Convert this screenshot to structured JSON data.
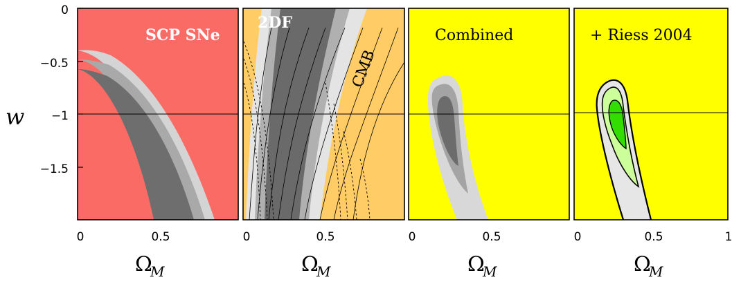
{
  "chart_data": [
    {
      "type": "contour",
      "label": "SCP SNe",
      "background": "#FA6B66",
      "xlim": [
        0,
        1
      ],
      "ylim": [
        -2,
        0
      ],
      "reference_line": {
        "w": -1
      },
      "contours": [
        {
          "level": "outer",
          "color": "#D4D4D4"
        },
        {
          "level": "middle",
          "color": "#A9A9A9"
        },
        {
          "level": "inner",
          "color": "#6E6E6E"
        }
      ]
    },
    {
      "type": "contour",
      "labels": [
        "2DF",
        "CMB"
      ],
      "background": "#FFCC66",
      "xlim": [
        0,
        1
      ],
      "ylim": [
        -2,
        0
      ],
      "reference_line": {
        "w": -1
      },
      "contours": [
        {
          "level": "outer",
          "color": "#E4E4E4"
        },
        {
          "level": "middle",
          "color": "#B0B0B0"
        },
        {
          "level": "inner",
          "color": "#6A6A6A"
        }
      ]
    },
    {
      "type": "contour",
      "label": "Combined",
      "background": "#FFFF00",
      "xlim": [
        0,
        1
      ],
      "ylim": [
        -2,
        0
      ],
      "reference_line": {
        "w": -1
      },
      "best_fit": {
        "omega_m": 0.27,
        "w": -1.2
      },
      "contours": [
        {
          "level": "outer",
          "color": "#D8D8D8"
        },
        {
          "level": "middle",
          "color": "#A4A4A4"
        },
        {
          "level": "inner",
          "color": "#6C6C6C"
        }
      ]
    },
    {
      "type": "contour",
      "label": "+ Riess 2004",
      "background": "#FFFF00",
      "xlim": [
        0,
        1
      ],
      "ylim": [
        -2,
        0
      ],
      "reference_line": {
        "w": -1
      },
      "best_fit": {
        "omega_m": 0.28,
        "w": -1.1
      },
      "contours": [
        {
          "level": "outer",
          "color": "#E6E6E6"
        },
        {
          "level": "middle",
          "color": "#CCFF99"
        },
        {
          "level": "inner",
          "color": "#33DD00"
        }
      ]
    }
  ],
  "axes": {
    "y_label": "w",
    "y_ticks": [
      "0",
      "−0.5",
      "−1",
      "−1.5"
    ],
    "x_ticks": [
      "0",
      "0.5",
      "0",
      "0.5",
      "0",
      "0.5",
      "0",
      "0.5",
      "1"
    ],
    "x_label_main": "Ω",
    "x_label_sub": "M"
  }
}
